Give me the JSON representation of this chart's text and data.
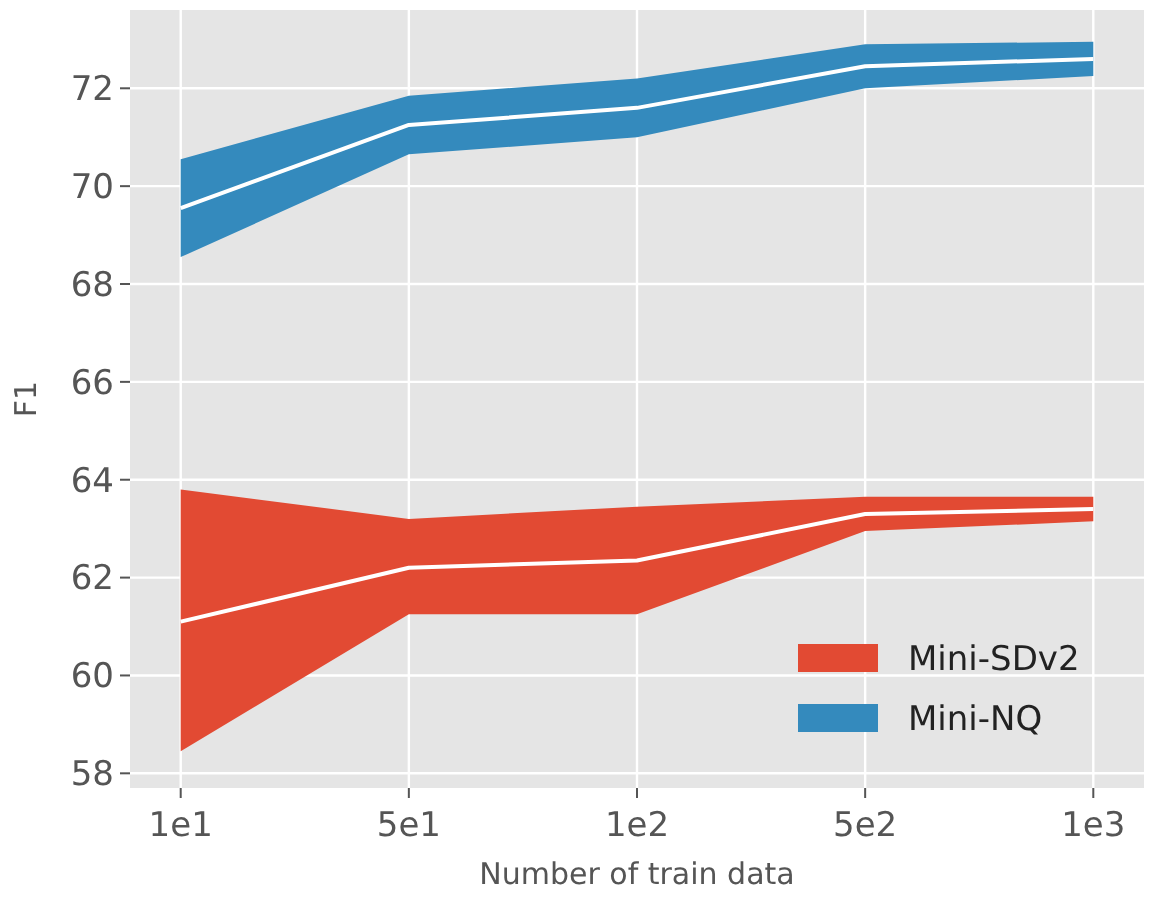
{
  "chart_data": {
    "type": "line",
    "xlabel": "Number of train data",
    "ylabel": "F1",
    "categories": [
      "1e1",
      "5e1",
      "1e2",
      "5e2",
      "1e3"
    ],
    "series": [
      {
        "name": "Mini-SDv2",
        "color": "#e24a33",
        "values": [
          null,
          null,
          null,
          null,
          null
        ],
        "lower": [
          58.45,
          61.25,
          61.25,
          62.95,
          63.15
        ],
        "upper": [
          63.8,
          63.2,
          63.45,
          63.65,
          63.65
        ]
      },
      {
        "color": "#ffffff",
        "values": [
          61.1,
          62.2,
          62.35,
          63.3,
          63.4
        ]
      },
      {
        "name": "Mini-NQ",
        "color": "#348abd",
        "values": [
          null,
          null,
          null,
          null,
          null
        ],
        "lower": [
          68.55,
          70.65,
          71.0,
          72.0,
          72.25
        ],
        "upper": [
          70.55,
          71.85,
          72.2,
          72.9,
          72.95
        ]
      },
      {
        "color": "#ffffff",
        "values": [
          69.55,
          71.25,
          71.6,
          72.45,
          72.6
        ]
      }
    ],
    "ylim": [
      57.7,
      73.6
    ],
    "yticks": [
      58,
      60,
      62,
      64,
      66,
      68,
      70,
      72
    ],
    "grid": true,
    "legend": "bottom right"
  }
}
